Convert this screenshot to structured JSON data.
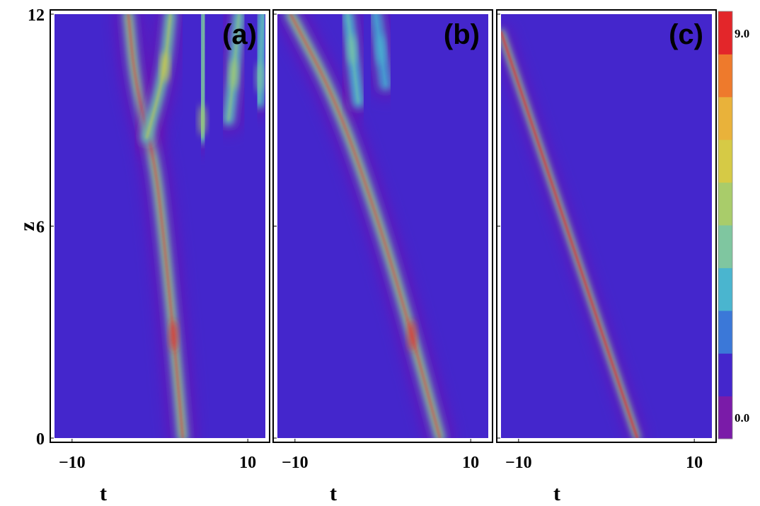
{
  "chart_data": {
    "type": "heatmap",
    "xlabel": "t",
    "ylabel": "z",
    "xlim": [
      -12,
      12
    ],
    "ylim": [
      0,
      12
    ],
    "x_ticks": [
      -10,
      10
    ],
    "x_tick_labels": [
      "−10",
      "10"
    ],
    "y_ticks": [
      0,
      6,
      12
    ],
    "y_tick_labels": [
      "0",
      "6",
      "12"
    ],
    "background_color": "#4426cc",
    "colorbar": {
      "range": [
        0,
        9
      ],
      "labels": [
        "0.0",
        "9.0"
      ],
      "colors": [
        "#7a1ba8",
        "#4426cc",
        "#3b78d8",
        "#4ab5cf",
        "#7fc6a0",
        "#a9cc6a",
        "#d6ca45",
        "#e9b23a",
        "#ee7a2c",
        "#e3262a"
      ]
    },
    "panels": [
      {
        "label": "(a)",
        "background": "#4426cc",
        "ridges": [
          {
            "points": [
              [
                2.6,
                0
              ],
              [
                1.6,
                2.8
              ],
              [
                0.3,
                6
              ],
              [
                -0.7,
                8
              ],
              [
                -2.8,
                10
              ],
              [
                -3.6,
                12
              ]
            ],
            "peak": 9.0,
            "max_at_z": 2.9
          },
          {
            "points": [
              [
                -1.5,
                8.5
              ],
              [
                0.5,
                10.3
              ],
              [
                1.2,
                12
              ]
            ],
            "peak": 6.0,
            "max_at_z": 10.5
          },
          {
            "points": [
              [
                4.8,
                8.5
              ],
              [
                4.9,
                10
              ],
              [
                5.0,
                12
              ]
            ],
            "peak": 5.0,
            "max_at_z": 9.0
          },
          {
            "points": [
              [
                7.8,
                9.0
              ],
              [
                8.4,
                10.3
              ],
              [
                9.0,
                12
              ]
            ],
            "peak": 5.0,
            "max_at_z": 10.3
          },
          {
            "points": [
              [
                11.3,
                9.5
              ],
              [
                11.4,
                10.4
              ],
              [
                11.7,
                12
              ]
            ],
            "peak": 4.0,
            "max_at_z": 10.2
          }
        ]
      },
      {
        "label": "(b)",
        "background": "#4426cc",
        "ridges": [
          {
            "points": [
              [
                6.5,
                0
              ],
              [
                3.0,
                3.2
              ],
              [
                -0.3,
                6
              ],
              [
                -5.2,
                9.5
              ],
              [
                -10.5,
                12
              ]
            ],
            "peak": 9.0,
            "max_at_z": 2.9
          },
          {
            "points": [
              [
                -2.8,
                9.5
              ],
              [
                -4.0,
                12
              ]
            ],
            "peak": 4.0,
            "max_at_z": 11.0
          },
          {
            "points": [
              [
                0.3,
                10.0
              ],
              [
                -0.8,
                12
              ]
            ],
            "peak": 2.5,
            "max_at_z": 11.0
          }
        ]
      },
      {
        "label": "(c)",
        "background": "#4426cc",
        "ridges": [
          {
            "points": [
              [
                3.5,
                0
              ],
              [
                -12,
                11.5
              ]
            ],
            "peak": 9.0,
            "max_at_z": 6.0
          }
        ]
      }
    ]
  }
}
